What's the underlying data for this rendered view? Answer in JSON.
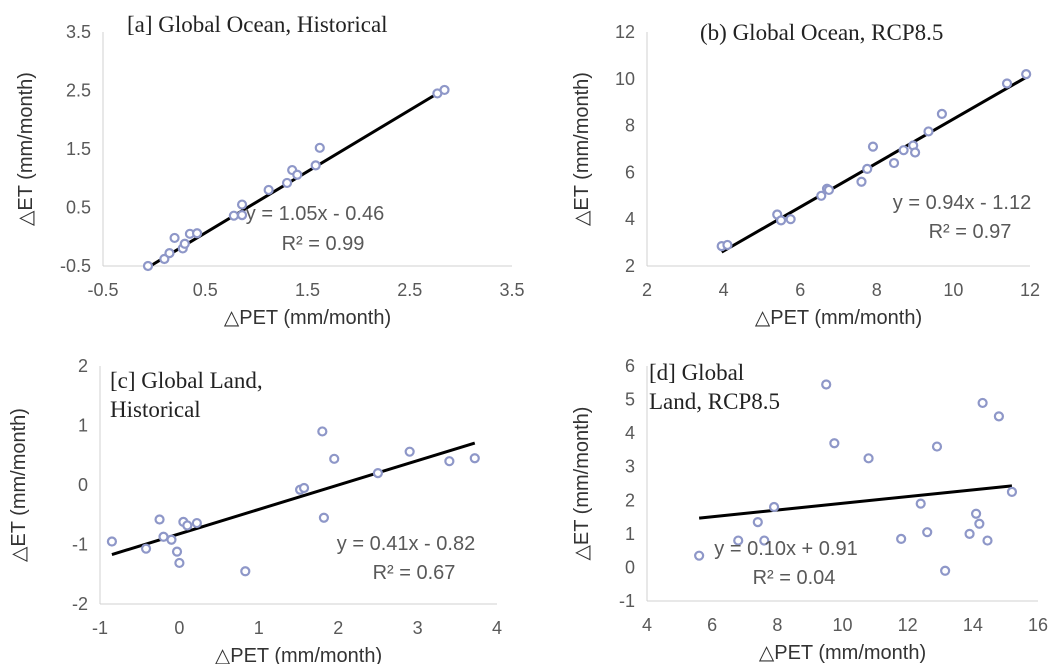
{
  "figure": {
    "colors": {
      "marker_edge": "#8E97C8",
      "marker_fill": "#ffffff",
      "trendline": "#000000",
      "text": "#595959"
    }
  },
  "chart_data": [
    {
      "type": "scatter",
      "title_lines": [
        "[a] Global Ocean, Historical"
      ],
      "xlabel": "△PET (mm/month)",
      "ylabel": "△ET (mm/month)",
      "xlim": [
        -0.5,
        3.5
      ],
      "ylim": [
        -0.5,
        3.5
      ],
      "xticks": [
        -0.5,
        0.5,
        1.5,
        2.5,
        3.5
      ],
      "yticks": [
        -0.5,
        0.5,
        1.5,
        2.5,
        3.5
      ],
      "xtick_labels": [
        "-0.5",
        "0.5",
        "1.5",
        "2.5",
        "3.5"
      ],
      "ytick_labels": [
        "-0.5",
        "0.5",
        "1.5",
        "2.5",
        "3.5"
      ],
      "points": [
        [
          -0.06,
          -0.5
        ],
        [
          0.1,
          -0.38
        ],
        [
          0.15,
          -0.28
        ],
        [
          0.2,
          -0.02
        ],
        [
          0.28,
          -0.2
        ],
        [
          0.3,
          -0.12
        ],
        [
          0.35,
          0.05
        ],
        [
          0.42,
          0.06
        ],
        [
          0.78,
          0.36
        ],
        [
          0.86,
          0.37
        ],
        [
          0.86,
          0.55
        ],
        [
          1.12,
          0.8
        ],
        [
          1.3,
          0.92
        ],
        [
          1.35,
          1.14
        ],
        [
          1.4,
          1.06
        ],
        [
          1.58,
          1.22
        ],
        [
          1.62,
          1.52
        ],
        [
          2.77,
          2.45
        ],
        [
          2.84,
          2.51
        ]
      ],
      "trendline": {
        "slope": 1.05,
        "intercept": -0.46,
        "x_range": [
          -0.05,
          2.85
        ]
      },
      "equation_label": "y = 1.05x - 0.46",
      "r2_label": "R² = 0.99"
    },
    {
      "type": "scatter",
      "title_lines": [
        "(b) Global Ocean, RCP8.5"
      ],
      "xlabel": "△PET (mm/month)",
      "ylabel": "△ET (mm/month)",
      "xlim": [
        2,
        12
      ],
      "ylim": [
        2,
        12
      ],
      "xticks": [
        2,
        4,
        6,
        8,
        10,
        12
      ],
      "yticks": [
        2,
        4,
        6,
        8,
        10,
        12
      ],
      "xtick_labels": [
        "2",
        "4",
        "6",
        "8",
        "10",
        "12"
      ],
      "ytick_labels": [
        "2",
        "4",
        "6",
        "8",
        "10",
        "12"
      ],
      "points": [
        [
          3.95,
          2.85
        ],
        [
          4.1,
          2.9
        ],
        [
          5.4,
          4.2
        ],
        [
          5.5,
          3.95
        ],
        [
          5.75,
          4.0
        ],
        [
          6.55,
          5.0
        ],
        [
          6.7,
          5.3
        ],
        [
          6.75,
          5.25
        ],
        [
          7.6,
          5.6
        ],
        [
          7.75,
          6.15
        ],
        [
          7.9,
          7.1
        ],
        [
          8.45,
          6.4
        ],
        [
          8.7,
          6.95
        ],
        [
          8.95,
          7.15
        ],
        [
          9.0,
          6.85
        ],
        [
          9.35,
          7.75
        ],
        [
          9.7,
          8.5
        ],
        [
          11.4,
          9.8
        ],
        [
          11.9,
          10.2
        ]
      ],
      "trendline": {
        "slope": 0.94,
        "intercept": -1.12,
        "x_range": [
          3.95,
          11.95
        ]
      },
      "equation_label": "y = 0.94x - 1.12",
      "r2_label": "R² = 0.97"
    },
    {
      "type": "scatter",
      "title_lines": [
        "[c] Global Land,",
        "Historical"
      ],
      "xlabel": "△PET (mm/month)",
      "ylabel": "△ET (mm/month)",
      "xlim": [
        -1,
        4
      ],
      "ylim": [
        -2,
        2
      ],
      "xticks": [
        -1,
        0,
        1,
        2,
        3,
        4
      ],
      "yticks": [
        -2,
        -1,
        0,
        1,
        2
      ],
      "xtick_labels": [
        "-1",
        "0",
        "1",
        "2",
        "3",
        "4"
      ],
      "ytick_labels": [
        "-2",
        "-1",
        "0",
        "1",
        "2"
      ],
      "points": [
        [
          -0.85,
          -0.95
        ],
        [
          -0.42,
          -1.07
        ],
        [
          -0.25,
          -0.58
        ],
        [
          -0.2,
          -0.87
        ],
        [
          -0.1,
          -0.92
        ],
        [
          -0.03,
          -1.12
        ],
        [
          0.0,
          -1.31
        ],
        [
          0.05,
          -0.62
        ],
        [
          0.1,
          -0.68
        ],
        [
          0.22,
          -0.64
        ],
        [
          0.83,
          -1.45
        ],
        [
          1.52,
          -0.08
        ],
        [
          1.57,
          -0.05
        ],
        [
          1.8,
          0.9
        ],
        [
          1.82,
          -0.55
        ],
        [
          1.95,
          0.44
        ],
        [
          2.5,
          0.2
        ],
        [
          2.9,
          0.56
        ],
        [
          3.4,
          0.4
        ],
        [
          3.72,
          0.45
        ]
      ],
      "trendline": {
        "slope": 0.41,
        "intercept": -0.82,
        "x_range": [
          -0.85,
          3.72
        ]
      },
      "equation_label": "y = 0.41x - 0.82",
      "r2_label": "R² = 0.67"
    },
    {
      "type": "scatter",
      "title_lines": [
        "[d] Global",
        "Land, RCP8.5"
      ],
      "xlabel": "△PET (mm/month)",
      "ylabel": "△ET (mm/month)",
      "xlim": [
        4,
        16
      ],
      "ylim": [
        -1,
        6
      ],
      "xticks": [
        4,
        6,
        8,
        10,
        12,
        14,
        16
      ],
      "yticks": [
        -1,
        0,
        1,
        2,
        3,
        4,
        5,
        6
      ],
      "xtick_labels": [
        "4",
        "6",
        "8",
        "10",
        "12",
        "14",
        "16"
      ],
      "ytick_labels": [
        "-1",
        "0",
        "1",
        "2",
        "3",
        "4",
        "5",
        "6"
      ],
      "points": [
        [
          5.6,
          0.35
        ],
        [
          6.8,
          0.8
        ],
        [
          7.4,
          1.35
        ],
        [
          7.6,
          0.8
        ],
        [
          7.9,
          1.8
        ],
        [
          9.5,
          5.45
        ],
        [
          9.75,
          3.7
        ],
        [
          10.8,
          3.25
        ],
        [
          11.8,
          0.85
        ],
        [
          12.4,
          1.9
        ],
        [
          12.6,
          1.05
        ],
        [
          12.9,
          3.6
        ],
        [
          13.15,
          -0.1
        ],
        [
          13.9,
          1.0
        ],
        [
          14.1,
          1.6
        ],
        [
          14.2,
          1.3
        ],
        [
          14.3,
          4.9
        ],
        [
          14.45,
          0.8
        ],
        [
          14.8,
          4.5
        ],
        [
          15.2,
          2.25
        ]
      ],
      "trendline": {
        "slope": 0.1,
        "intercept": 0.91,
        "x_range": [
          5.6,
          15.2
        ]
      },
      "equation_label": "y = 0.10x + 0.91",
      "r2_label": "R² = 0.04"
    }
  ]
}
